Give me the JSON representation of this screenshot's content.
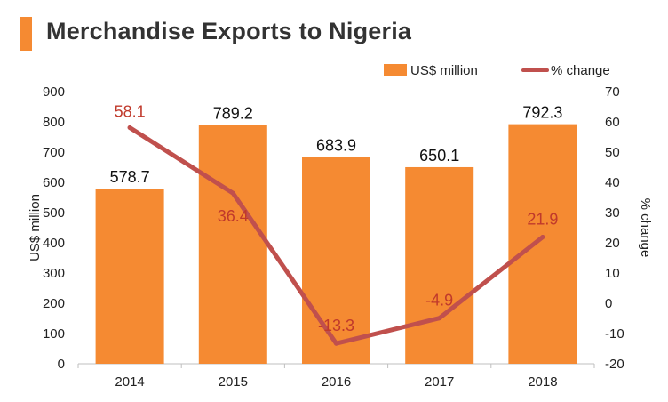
{
  "title": "Merchandise Exports to Nigeria",
  "colors": {
    "accent": "#f58a32",
    "bar": "#f58a32",
    "line": "#c0504d",
    "line_label": "#c0392b",
    "axis": "#bfbfbf",
    "title": "#333333"
  },
  "chart_data": {
    "type": "bar",
    "categories": [
      "2014",
      "2015",
      "2016",
      "2017",
      "2018"
    ],
    "series": [
      {
        "name": "US$ million",
        "type": "bar",
        "axis": "left",
        "values": [
          578.7,
          789.2,
          683.9,
          650.1,
          792.3
        ],
        "labels": [
          "578.7",
          "789.2",
          "683.9",
          "650.1",
          "792.3"
        ]
      },
      {
        "name": "% change",
        "type": "line",
        "axis": "right",
        "values": [
          58.1,
          36.4,
          -13.3,
          -4.9,
          21.9
        ],
        "labels": [
          "58.1",
          "36.4",
          "-13.3",
          "-4.9",
          "21.9"
        ]
      }
    ],
    "ylabel": "US$ million",
    "y2label": "% change",
    "ylim": [
      0,
      900
    ],
    "y2lim": [
      -20,
      70
    ],
    "yticks": [
      "0",
      "100",
      "200",
      "300",
      "400",
      "500",
      "600",
      "700",
      "800",
      "900"
    ],
    "y2ticks": [
      "-20",
      "-10",
      "0",
      "10",
      "20",
      "30",
      "40",
      "50",
      "60",
      "70"
    ],
    "legend_position": "top-right",
    "grid": false
  }
}
